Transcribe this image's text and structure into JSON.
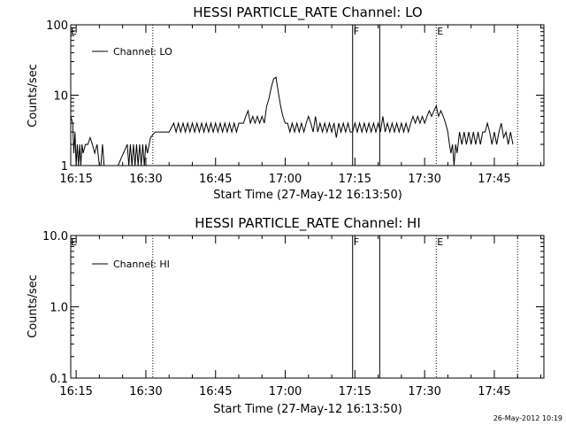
{
  "footer_timestamp": "26-May-2012 10:19",
  "chart_data": [
    {
      "type": "line",
      "title": "HESSI PARTICLE_RATE Channel: LO",
      "xlabel": "Start Time (27-May-12 16:13:50)",
      "ylabel": "Counts/sec",
      "yscale": "log",
      "ylim": [
        1,
        100
      ],
      "xlim": [
        "16:13:50",
        "17:55:40"
      ],
      "y_ticks": [
        "1",
        "10",
        "100"
      ],
      "x_ticks": [
        "16:15",
        "16:30",
        "16:45",
        "17:00",
        "17:15",
        "17:30",
        "17:45"
      ],
      "legend": {
        "position": "top-left",
        "entries": [
          "Channel: LO"
        ]
      },
      "vertical_markers": [
        {
          "time": "16:31:30",
          "style": "dotted",
          "label": ""
        },
        {
          "time": "17:14:30",
          "style": "solid",
          "label": "F"
        },
        {
          "time": "17:20:20",
          "style": "solid",
          "label": ""
        },
        {
          "time": "17:32:30",
          "style": "dotted",
          "label": "E"
        },
        {
          "time": "17:50:00",
          "style": "dotted",
          "label": ""
        }
      ],
      "corner_label": "E",
      "series": [
        {
          "points": [
            [
              "16:13:50",
              5
            ],
            [
              "16:14:15",
              4
            ],
            [
              "16:14:30",
              1.5
            ],
            [
              "16:14:45",
              3
            ],
            [
              "16:15:00",
              1
            ],
            [
              "16:15:15",
              2
            ],
            [
              "16:15:30",
              1
            ],
            [
              "16:15:45",
              2
            ],
            [
              "16:16:00",
              1
            ],
            [
              "16:16:15",
              2
            ],
            [
              "16:16:30",
              1.5
            ],
            [
              "16:17:00",
              2
            ],
            [
              "16:17:30",
              2
            ],
            [
              "16:18:00",
              2.5
            ],
            [
              "16:18:30",
              2
            ],
            [
              "16:19:00",
              1.5
            ],
            [
              "16:19:30",
              2
            ],
            [
              "16:20:00",
              1
            ],
            [
              "16:20:20",
              1
            ],
            [
              "16:20:40",
              2
            ],
            [
              "16:21:00",
              1
            ],
            [
              "16:22:00",
              1
            ],
            [
              "16:23:00",
              1
            ],
            [
              "16:24:00",
              1
            ],
            [
              "16:26:00",
              2
            ],
            [
              "16:26:20",
              1
            ],
            [
              "16:26:40",
              2
            ],
            [
              "16:27:00",
              1
            ],
            [
              "16:27:20",
              2
            ],
            [
              "16:27:40",
              1
            ],
            [
              "16:28:00",
              2
            ],
            [
              "16:28:20",
              1
            ],
            [
              "16:28:40",
              2
            ],
            [
              "16:29:00",
              1
            ],
            [
              "16:29:20",
              2
            ],
            [
              "16:29:40",
              1
            ],
            [
              "16:30:00",
              2
            ],
            [
              "16:30:20",
              1.5
            ],
            [
              "16:31:00",
              2.5
            ],
            [
              "16:32:00",
              3
            ],
            [
              "16:33:00",
              3
            ],
            [
              "16:35:00",
              3
            ],
            [
              "16:36:00",
              4
            ],
            [
              "16:36:30",
              3
            ],
            [
              "16:37:00",
              4
            ],
            [
              "16:37:30",
              3
            ],
            [
              "16:38:00",
              4
            ],
            [
              "16:38:30",
              3
            ],
            [
              "16:39:00",
              4
            ],
            [
              "16:39:30",
              3
            ],
            [
              "16:40:00",
              4
            ],
            [
              "16:40:30",
              3
            ],
            [
              "16:41:00",
              4
            ],
            [
              "16:41:30",
              3
            ],
            [
              "16:42:00",
              4
            ],
            [
              "16:42:30",
              3
            ],
            [
              "16:43:00",
              4
            ],
            [
              "16:43:30",
              3
            ],
            [
              "16:44:00",
              4
            ],
            [
              "16:44:30",
              3
            ],
            [
              "16:45:00",
              4
            ],
            [
              "16:45:30",
              3
            ],
            [
              "16:46:00",
              4
            ],
            [
              "16:46:30",
              3
            ],
            [
              "16:47:00",
              4
            ],
            [
              "16:47:30",
              3
            ],
            [
              "16:48:00",
              4
            ],
            [
              "16:48:30",
              3
            ],
            [
              "16:49:00",
              4
            ],
            [
              "16:49:30",
              3
            ],
            [
              "16:50:00",
              4
            ],
            [
              "16:51:00",
              4
            ],
            [
              "16:51:30",
              5
            ],
            [
              "16:52:00",
              6
            ],
            [
              "16:52:30",
              4
            ],
            [
              "16:53:00",
              5
            ],
            [
              "16:53:30",
              4
            ],
            [
              "16:54:00",
              5
            ],
            [
              "16:54:30",
              4
            ],
            [
              "16:55:00",
              5
            ],
            [
              "16:55:30",
              4
            ],
            [
              "16:56:00",
              7
            ],
            [
              "16:56:30",
              9
            ],
            [
              "16:57:00",
              13
            ],
            [
              "16:57:30",
              17
            ],
            [
              "16:58:00",
              18
            ],
            [
              "16:58:30",
              11
            ],
            [
              "16:59:00",
              7
            ],
            [
              "16:59:30",
              5
            ],
            [
              "17:00:00",
              4
            ],
            [
              "17:00:30",
              4
            ],
            [
              "17:01:00",
              3
            ],
            [
              "17:01:30",
              4
            ],
            [
              "17:02:00",
              3
            ],
            [
              "17:02:30",
              4
            ],
            [
              "17:03:00",
              3
            ],
            [
              "17:03:30",
              4
            ],
            [
              "17:04:00",
              3
            ],
            [
              "17:04:30",
              4
            ],
            [
              "17:05:00",
              5
            ],
            [
              "17:05:30",
              4
            ],
            [
              "17:06:00",
              3
            ],
            [
              "17:06:30",
              5
            ],
            [
              "17:07:00",
              3
            ],
            [
              "17:07:30",
              4
            ],
            [
              "17:08:00",
              3
            ],
            [
              "17:08:30",
              4
            ],
            [
              "17:09:00",
              3
            ],
            [
              "17:09:30",
              4
            ],
            [
              "17:10:00",
              3
            ],
            [
              "17:10:30",
              4
            ],
            [
              "17:11:00",
              2.5
            ],
            [
              "17:11:30",
              4
            ],
            [
              "17:12:00",
              3
            ],
            [
              "17:12:30",
              4
            ],
            [
              "17:13:00",
              3
            ],
            [
              "17:13:30",
              4
            ],
            [
              "17:14:00",
              3
            ],
            [
              "17:14:30",
              3
            ],
            [
              "17:15:00",
              4
            ],
            [
              "17:15:30",
              3
            ],
            [
              "17:16:00",
              4
            ],
            [
              "17:16:30",
              3
            ],
            [
              "17:17:00",
              4
            ],
            [
              "17:17:30",
              3
            ],
            [
              "17:18:00",
              4
            ],
            [
              "17:18:30",
              3
            ],
            [
              "17:19:00",
              4
            ],
            [
              "17:19:30",
              3
            ],
            [
              "17:20:00",
              4
            ],
            [
              "17:20:30",
              3
            ],
            [
              "17:21:00",
              5
            ],
            [
              "17:21:30",
              3
            ],
            [
              "17:22:00",
              4
            ],
            [
              "17:22:30",
              3
            ],
            [
              "17:23:00",
              4
            ],
            [
              "17:23:30",
              3
            ],
            [
              "17:24:00",
              4
            ],
            [
              "17:24:30",
              3
            ],
            [
              "17:25:00",
              4
            ],
            [
              "17:25:30",
              3
            ],
            [
              "17:26:00",
              4
            ],
            [
              "17:26:30",
              3
            ],
            [
              "17:27:00",
              4
            ],
            [
              "17:27:30",
              5
            ],
            [
              "17:28:00",
              4
            ],
            [
              "17:28:30",
              5
            ],
            [
              "17:29:00",
              4
            ],
            [
              "17:29:30",
              5
            ],
            [
              "17:30:00",
              4
            ],
            [
              "17:30:30",
              5
            ],
            [
              "17:31:00",
              6
            ],
            [
              "17:31:30",
              5
            ],
            [
              "17:32:00",
              6
            ],
            [
              "17:32:30",
              7
            ],
            [
              "17:33:00",
              5
            ],
            [
              "17:33:30",
              6
            ],
            [
              "17:34:00",
              5
            ],
            [
              "17:34:30",
              4
            ],
            [
              "17:35:00",
              3
            ],
            [
              "17:35:20",
              2
            ],
            [
              "17:35:40",
              1.5
            ],
            [
              "17:36:00",
              2
            ],
            [
              "17:36:20",
              1
            ],
            [
              "17:36:40",
              2
            ],
            [
              "17:37:00",
              1.5
            ],
            [
              "17:37:30",
              3
            ],
            [
              "17:38:00",
              2
            ],
            [
              "17:38:30",
              3
            ],
            [
              "17:39:00",
              2
            ],
            [
              "17:39:30",
              3
            ],
            [
              "17:40:00",
              2
            ],
            [
              "17:40:30",
              3
            ],
            [
              "17:41:00",
              2
            ],
            [
              "17:41:30",
              3
            ],
            [
              "17:42:00",
              2
            ],
            [
              "17:42:30",
              3
            ],
            [
              "17:43:00",
              3
            ],
            [
              "17:43:30",
              4
            ],
            [
              "17:44:00",
              3
            ],
            [
              "17:44:30",
              2
            ],
            [
              "17:45:00",
              3
            ],
            [
              "17:45:30",
              2
            ],
            [
              "17:46:00",
              3
            ],
            [
              "17:46:30",
              4
            ],
            [
              "17:47:00",
              2.5
            ],
            [
              "17:47:30",
              3
            ],
            [
              "17:48:00",
              2
            ],
            [
              "17:48:30",
              3
            ],
            [
              "17:49:00",
              2
            ]
          ]
        }
      ]
    },
    {
      "type": "line",
      "title": "HESSI PARTICLE_RATE Channel: HI",
      "xlabel": "Start Time (27-May-12 16:13:50)",
      "ylabel": "Counts/sec",
      "yscale": "log",
      "ylim": [
        0.1,
        10
      ],
      "xlim": [
        "16:13:50",
        "17:55:40"
      ],
      "y_ticks": [
        "0.1",
        "1.0",
        "10.0"
      ],
      "x_ticks": [
        "16:15",
        "16:30",
        "16:45",
        "17:00",
        "17:15",
        "17:30",
        "17:45"
      ],
      "legend": {
        "position": "top-left",
        "entries": [
          "Channel: HI"
        ]
      },
      "vertical_markers": [
        {
          "time": "16:31:30",
          "style": "dotted",
          "label": ""
        },
        {
          "time": "17:14:30",
          "style": "solid",
          "label": "F"
        },
        {
          "time": "17:20:20",
          "style": "solid",
          "label": ""
        },
        {
          "time": "17:32:30",
          "style": "dotted",
          "label": "E"
        },
        {
          "time": "17:50:00",
          "style": "dotted",
          "label": ""
        }
      ],
      "corner_label": "E",
      "series": [
        {
          "points": []
        }
      ]
    }
  ]
}
